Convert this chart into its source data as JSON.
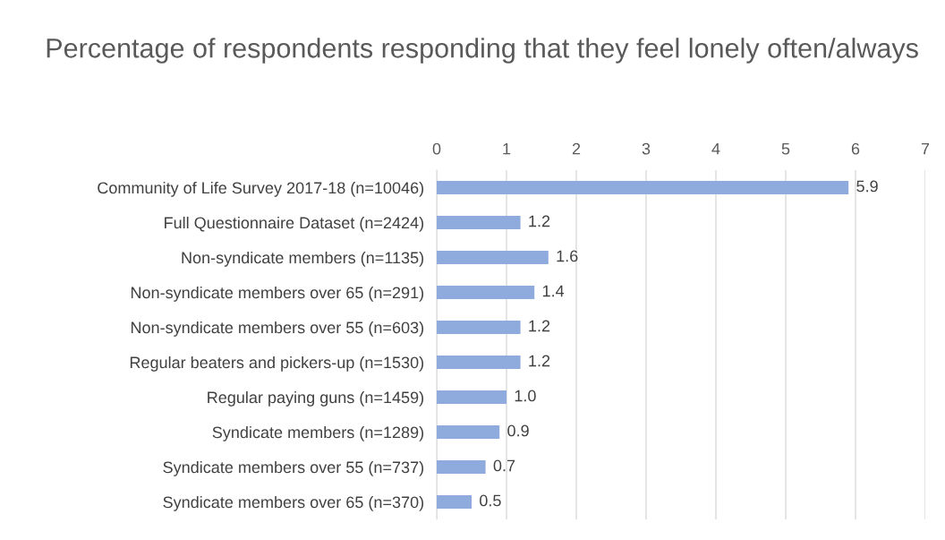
{
  "chart_data": {
    "type": "bar",
    "orientation": "horizontal",
    "title": "Percentage of respondents responding that they feel lonely often/always",
    "categories": [
      "Community of Life Survey 2017-18 (n=10046)",
      "Full Questionnaire Dataset (n=2424)",
      "Non-syndicate members (n=1135)",
      "Non-syndicate members over 65 (n=291)",
      "Non-syndicate members over 55 (n=603)",
      "Regular beaters and pickers-up (n=1530)",
      "Regular paying guns (n=1459)",
      "Syndicate members (n=1289)",
      "Syndicate members over 55 (n=737)",
      "Syndicate members over 65 (n=370)"
    ],
    "values": [
      5.9,
      1.2,
      1.6,
      1.4,
      1.2,
      1.2,
      1.0,
      0.9,
      0.7,
      0.5
    ],
    "value_labels": [
      "5.9",
      "1.2",
      "1.6",
      "1.4",
      "1.2",
      "1.2",
      "1.0",
      "0.9",
      "0.7",
      "0.5"
    ],
    "color": "#8faadc",
    "xlim": [
      0,
      7
    ],
    "xticks": [
      0,
      1,
      2,
      3,
      4,
      5,
      6,
      7
    ],
    "grid": "x"
  }
}
